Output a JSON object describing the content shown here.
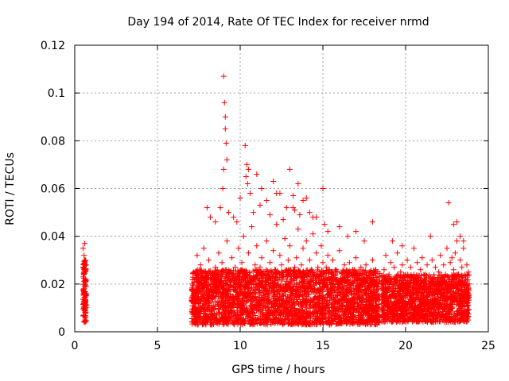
{
  "chart_data": {
    "type": "scatter",
    "title": "Day 194 of 2014, Rate Of TEC Index for receiver nrmd",
    "xlabel": "GPS time / hours",
    "ylabel": "ROTI / TECUs",
    "xlim": [
      0,
      25
    ],
    "ylim": [
      0,
      0.12
    ],
    "x_ticks": [
      "0",
      "5",
      "10",
      "15",
      "20",
      "25"
    ],
    "y_ticks": [
      "0",
      "0.02",
      "0.04",
      "0.06",
      "0.08",
      "0.1",
      "0.12"
    ],
    "grid": true,
    "marker": "+",
    "color": "#ff0000",
    "series": [
      {
        "name": "ROTI",
        "x": [
          0.52,
          0.55,
          0.57,
          0.6,
          0.62,
          0.65,
          0.67,
          0.5,
          0.58,
          0.63,
          0.54,
          0.61,
          0.66,
          0.56,
          0.59,
          0.53,
          0.64,
          0.68,
          0.51,
          0.6,
          7.1,
          7.2,
          7.3,
          7.4,
          7.5,
          7.6,
          7.7,
          7.8,
          7.9,
          8.0,
          8.1,
          8.2,
          8.3,
          8.4,
          8.5,
          8.6,
          8.7,
          8.8,
          8.9,
          9.0,
          9.1,
          9.2,
          9.3,
          9.4,
          9.5,
          9.6,
          9.7,
          9.8,
          9.9,
          10.0,
          10.1,
          10.2,
          10.3,
          10.4,
          10.5,
          10.6,
          10.7,
          10.8,
          10.9,
          11.0,
          11.1,
          11.2,
          11.3,
          11.4,
          11.5,
          11.6,
          11.7,
          11.8,
          11.9,
          12.0,
          12.1,
          12.2,
          12.3,
          12.4,
          12.5,
          12.6,
          12.7,
          12.8,
          12.9,
          13.0,
          13.1,
          13.2,
          13.3,
          13.4,
          13.5,
          13.6,
          13.7,
          13.8,
          13.9,
          14.0,
          14.1,
          14.2,
          14.3,
          14.4,
          14.5,
          14.6,
          14.7,
          14.8,
          14.9,
          15.0,
          15.1,
          15.2,
          15.3,
          15.4,
          15.5,
          15.6,
          15.7,
          15.8,
          15.9,
          16.0,
          16.1,
          16.2,
          16.3,
          16.4,
          16.5,
          16.6,
          16.7,
          16.8,
          16.9,
          17.0,
          17.1,
          17.2,
          17.3,
          17.4,
          17.5,
          17.6,
          17.7,
          17.8,
          17.9,
          18.0,
          18.1,
          18.2,
          18.3,
          18.4,
          18.6,
          18.7,
          18.8,
          18.9,
          19.0,
          19.1,
          19.2,
          19.3,
          19.4,
          19.5,
          19.6,
          19.7,
          19.8,
          19.9,
          20.0,
          20.1,
          20.2,
          20.3,
          20.4,
          20.5,
          20.6,
          20.7,
          20.8,
          20.9,
          21.0,
          21.1,
          21.2,
          21.3,
          21.4,
          21.5,
          21.6,
          21.7,
          21.8,
          21.9,
          22.0,
          22.1,
          22.2,
          22.3,
          22.4,
          22.5,
          22.6,
          22.7,
          22.8,
          22.9,
          23.0,
          23.1,
          23.2,
          23.3,
          23.4,
          23.5,
          23.6,
          23.7,
          23.8,
          9.0,
          9.05,
          9.1,
          9.1,
          9.15,
          9.2,
          9.0,
          8.95,
          10.3,
          10.4,
          10.5,
          10.35,
          10.45,
          10.6,
          11.0,
          11.3,
          11.6,
          12.0,
          12.4,
          12.8,
          13.0,
          13.2,
          13.5,
          13.8,
          14.2,
          14.6,
          15.0,
          15.1,
          15.3,
          16.0,
          16.5,
          17.0,
          17.5,
          18.0,
          19.2,
          19.8,
          20.5,
          21.5,
          22.6,
          22.9,
          23.1,
          23.3,
          23.5,
          8.0,
          8.2,
          8.5,
          8.8,
          9.3,
          9.6,
          9.8,
          10.0,
          10.8,
          11.2,
          11.8,
          12.2,
          12.6,
          13.3,
          13.6,
          14.0,
          14.4
        ],
        "y": [
          0.012,
          0.025,
          0.018,
          0.03,
          0.008,
          0.022,
          0.015,
          0.035,
          0.028,
          0.005,
          0.01,
          0.02,
          0.013,
          0.032,
          0.019,
          0.007,
          0.026,
          0.016,
          0.023,
          0.037,
          0.02,
          0.025,
          0.015,
          0.032,
          0.012,
          0.028,
          0.018,
          0.035,
          0.022,
          0.014,
          0.03,
          0.019,
          0.024,
          0.011,
          0.027,
          0.016,
          0.033,
          0.021,
          0.029,
          0.018,
          0.026,
          0.038,
          0.015,
          0.022,
          0.031,
          0.019,
          0.027,
          0.014,
          0.035,
          0.023,
          0.029,
          0.04,
          0.018,
          0.025,
          0.033,
          0.016,
          0.044,
          0.021,
          0.028,
          0.036,
          0.019,
          0.027,
          0.031,
          0.015,
          0.024,
          0.038,
          0.022,
          0.029,
          0.017,
          0.034,
          0.026,
          0.045,
          0.02,
          0.032,
          0.028,
          0.024,
          0.039,
          0.018,
          0.03,
          0.036,
          0.022,
          0.052,
          0.027,
          0.031,
          0.043,
          0.019,
          0.028,
          0.035,
          0.024,
          0.038,
          0.021,
          0.03,
          0.026,
          0.041,
          0.018,
          0.033,
          0.027,
          0.023,
          0.036,
          0.029,
          0.02,
          0.027,
          0.032,
          0.016,
          0.024,
          0.03,
          0.019,
          0.026,
          0.021,
          0.034,
          0.018,
          0.025,
          0.028,
          0.015,
          0.022,
          0.029,
          0.02,
          0.026,
          0.017,
          0.031,
          0.019,
          0.024,
          0.027,
          0.015,
          0.022,
          0.028,
          0.018,
          0.025,
          0.016,
          0.03,
          0.021,
          0.026,
          0.019,
          0.023,
          0.02,
          0.026,
          0.032,
          0.018,
          0.024,
          0.029,
          0.015,
          0.027,
          0.021,
          0.033,
          0.019,
          0.025,
          0.028,
          0.016,
          0.023,
          0.03,
          0.02,
          0.027,
          0.018,
          0.024,
          0.022,
          0.029,
          0.017,
          0.026,
          0.031,
          0.019,
          0.024,
          0.028,
          0.016,
          0.023,
          0.03,
          0.021,
          0.027,
          0.018,
          0.025,
          0.032,
          0.02,
          0.028,
          0.024,
          0.035,
          0.022,
          0.029,
          0.031,
          0.026,
          0.033,
          0.038,
          0.024,
          0.03,
          0.027,
          0.035,
          0.021,
          0.028,
          0.025,
          0.107,
          0.096,
          0.09,
          0.085,
          0.079,
          0.072,
          0.068,
          0.06,
          0.078,
          0.07,
          0.068,
          0.065,
          0.062,
          0.058,
          0.066,
          0.06,
          0.055,
          0.063,
          0.058,
          0.052,
          0.068,
          0.057,
          0.062,
          0.055,
          0.05,
          0.048,
          0.06,
          0.045,
          0.042,
          0.044,
          0.04,
          0.042,
          0.038,
          0.046,
          0.038,
          0.036,
          0.035,
          0.04,
          0.054,
          0.045,
          0.046,
          0.04,
          0.038,
          0.052,
          0.048,
          0.046,
          0.052,
          0.05,
          0.048,
          0.046,
          0.056,
          0.05,
          0.053,
          0.049,
          0.058,
          0.047,
          0.051,
          0.049,
          0.056,
          0.048
        ]
      }
    ],
    "dense_band": {
      "segments": [
        {
          "x_start": 0.5,
          "x_end": 0.7,
          "y_low": 0.004,
          "y_high": 0.03
        },
        {
          "x_start": 7.05,
          "x_end": 18.45,
          "y_low": 0.003,
          "y_high": 0.026
        },
        {
          "x_start": 18.55,
          "x_end": 23.85,
          "y_low": 0.004,
          "y_high": 0.024
        }
      ]
    }
  }
}
